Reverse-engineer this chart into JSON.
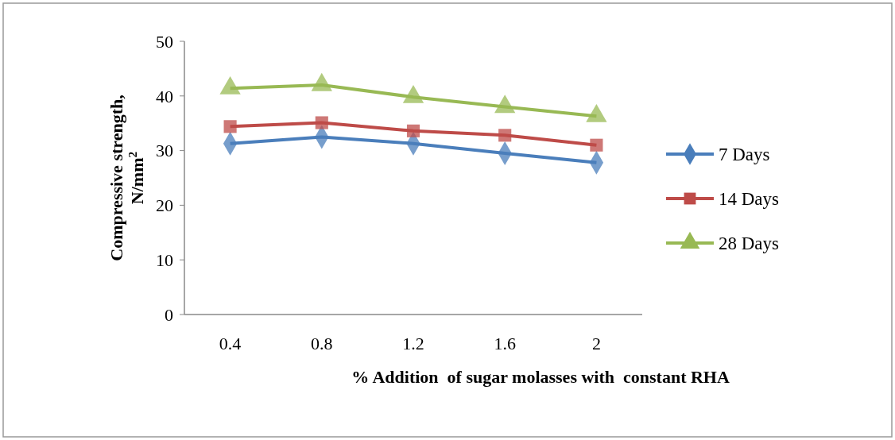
{
  "chart_data": {
    "type": "line",
    "xlabel": "% Addition  of sugar molasses with  constant RHA",
    "ylabel": "Compressive strength, N/mm$^{2}$",
    "categories": [
      "0.4",
      "0.8",
      "1.2",
      "1.6",
      "2"
    ],
    "series": [
      {
        "name": "7 Days",
        "color": "#4a7ebb",
        "marker": "diamond",
        "values": [
          31.3,
          32.5,
          31.3,
          29.5,
          27.8
        ]
      },
      {
        "name": "14 Days",
        "color": "#be4b48",
        "marker": "square",
        "values": [
          34.4,
          35.1,
          33.6,
          32.8,
          31
        ]
      },
      {
        "name": "28 Days",
        "color": "#98b954",
        "marker": "triangle",
        "values": [
          41.4,
          42,
          39.8,
          38,
          36.3
        ]
      }
    ],
    "ylim": [
      0,
      50
    ],
    "yticks": [
      0,
      10,
      20,
      30,
      40,
      50
    ],
    "grid": false,
    "legend": "right"
  }
}
